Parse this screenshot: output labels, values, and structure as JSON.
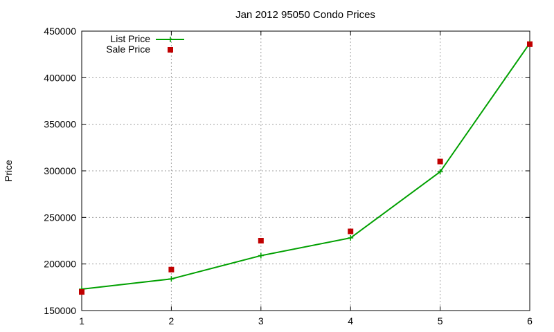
{
  "chart_data": {
    "type": "line",
    "title": "Jan 2012 95050 Condo Prices",
    "xlabel": "",
    "ylabel": "Price",
    "x": [
      1,
      2,
      3,
      4,
      5,
      6
    ],
    "xlim": [
      1,
      6
    ],
    "ylim": [
      150000,
      450000
    ],
    "xticks": [
      "1",
      "2",
      "3",
      "4",
      "5",
      "6"
    ],
    "yticks": [
      "150000",
      "200000",
      "250000",
      "300000",
      "350000",
      "400000",
      "450000"
    ],
    "grid": true,
    "legend_position": "top-left",
    "series": [
      {
        "name": "List Price",
        "style": "line+cross",
        "color": "#00a000",
        "values": [
          173000,
          184000,
          209000,
          228000,
          299000,
          437000
        ]
      },
      {
        "name": "Sale Price",
        "style": "square",
        "color": "#c00000",
        "values": [
          170000,
          194000,
          225000,
          235000,
          310000,
          436000
        ]
      }
    ]
  }
}
